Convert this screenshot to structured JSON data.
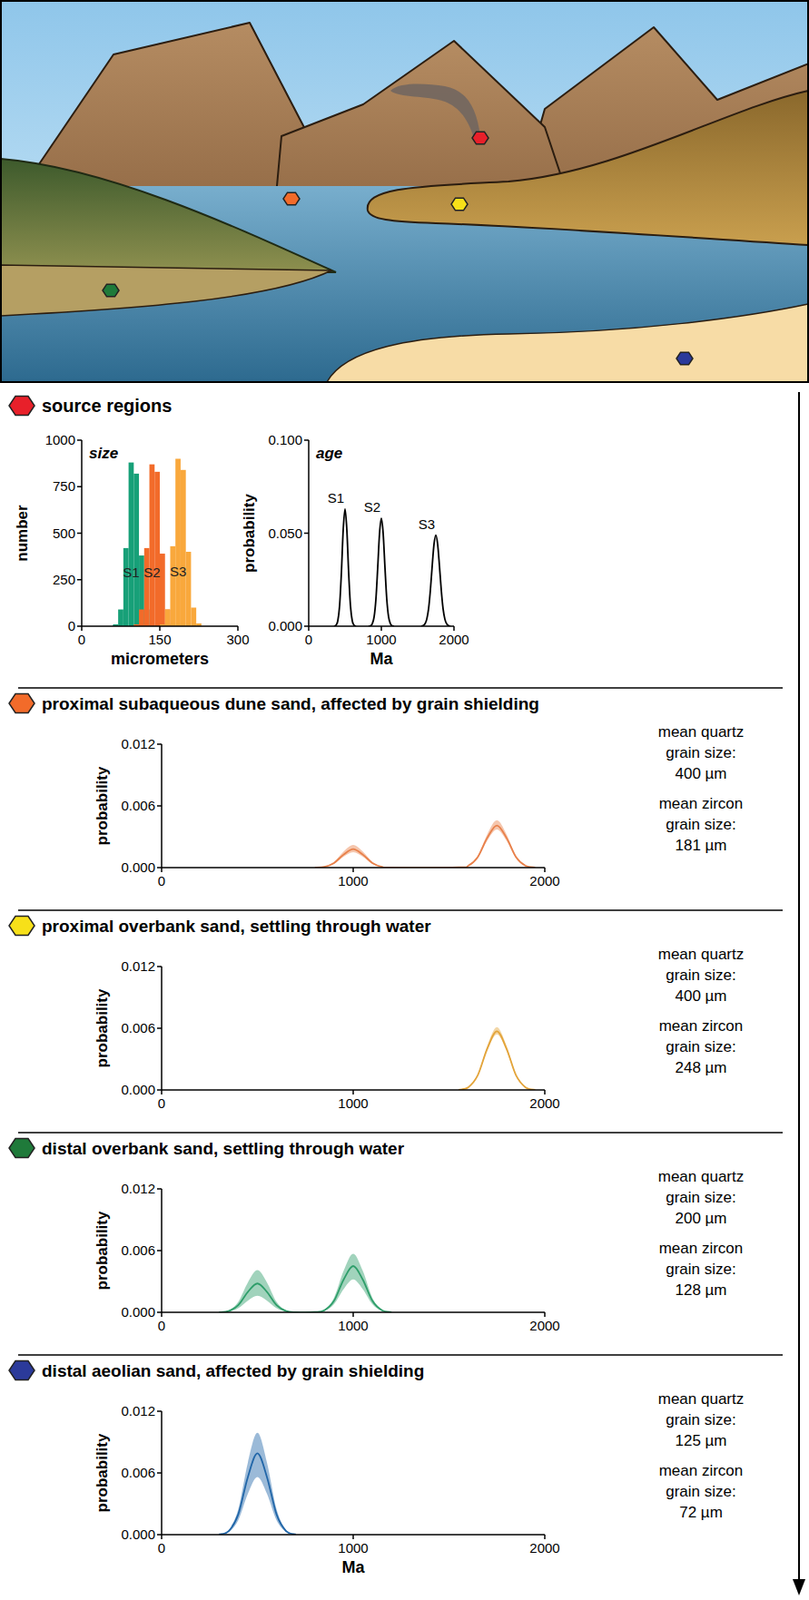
{
  "header": {
    "text": "source regions",
    "color": "#e8202a"
  },
  "chart_data": [
    {
      "type": "histogram",
      "title": "size",
      "xlabel": "micrometers",
      "ylabel": "number",
      "xlim": [
        0,
        300
      ],
      "xticks": [
        0,
        150,
        300
      ],
      "ylim": [
        0,
        1000
      ],
      "yticks": [
        0,
        250,
        500,
        750,
        1000
      ],
      "bins": [
        50,
        60,
        70,
        80,
        90,
        100,
        110,
        120,
        130,
        140,
        150,
        160,
        170,
        180,
        190,
        200,
        210,
        220,
        230,
        240,
        250
      ],
      "series": [
        {
          "name": "S1",
          "color": "#17a078",
          "values": [
            0,
            10,
            90,
            420,
            880,
            820,
            380,
            90,
            10,
            0,
            0,
            0,
            0,
            0,
            0,
            0,
            0,
            0,
            0,
            0
          ]
        },
        {
          "name": "S2",
          "color": "#f26b2a",
          "values": [
            0,
            0,
            0,
            0,
            0,
            10,
            90,
            420,
            870,
            830,
            390,
            90,
            10,
            0,
            0,
            0,
            0,
            0,
            0,
            0
          ]
        },
        {
          "name": "S3",
          "color": "#f9a83c",
          "values": [
            0,
            0,
            0,
            0,
            0,
            0,
            0,
            0,
            0,
            0,
            10,
            90,
            430,
            900,
            840,
            400,
            100,
            15,
            0,
            0
          ]
        }
      ]
    },
    {
      "type": "line",
      "title": "age",
      "xlabel": "Ma",
      "ylabel": "probability",
      "xlim": [
        0,
        2000
      ],
      "xticks": [
        0,
        1000,
        2000
      ],
      "ylim": [
        0,
        0.1
      ],
      "yticks": [
        {
          "value": 0,
          "label": "0.000"
        },
        {
          "value": 0.05,
          "label": "0.050"
        },
        {
          "value": 0.1,
          "label": "0.100"
        }
      ],
      "series": [
        {
          "name": "S1",
          "color": "#000000",
          "x": [
            350,
            375,
            400,
            425,
            450,
            475,
            500,
            525,
            550,
            575,
            600,
            625,
            650
          ],
          "values": [
            0,
            0.0005,
            0.0028,
            0.0109,
            0.0288,
            0.0519,
            0.063,
            0.0519,
            0.0288,
            0.0109,
            0.0028,
            0.0005,
            0
          ]
        },
        {
          "name": "S2",
          "color": "#000000",
          "x": [
            825,
            850,
            875,
            900,
            925,
            950,
            975,
            1000,
            1025,
            1050,
            1075,
            1100,
            1125,
            1150,
            1175
          ],
          "values": [
            0,
            0.0002,
            0.0013,
            0.0049,
            0.0144,
            0.0314,
            0.0499,
            0.058,
            0.0499,
            0.0314,
            0.0144,
            0.0049,
            0.0013,
            0.0002,
            0
          ]
        },
        {
          "name": "S3",
          "color": "#000000",
          "x": [
            1550,
            1575,
            1600,
            1625,
            1650,
            1675,
            1700,
            1725,
            1750,
            1775,
            1800,
            1825,
            1850,
            1875,
            1900,
            1925,
            1950
          ],
          "values": [
            0,
            0.0003,
            0.0012,
            0.0037,
            0.0093,
            0.0194,
            0.0324,
            0.0441,
            0.049,
            0.0441,
            0.0324,
            0.0194,
            0.0093,
            0.0037,
            0.0012,
            0.0003,
            0
          ]
        }
      ]
    },
    {
      "type": "line",
      "title": "proximal subaqueous dune sand, affected by grain shielding",
      "color": "#f26b2a",
      "ylabel": "probability",
      "xlim": [
        0,
        2000
      ],
      "xticks": [
        0,
        1000,
        2000
      ],
      "ylim": [
        0,
        0.012
      ],
      "yticks": [
        {
          "value": 0,
          "label": "0.000"
        },
        {
          "value": 0.006,
          "label": "0.006"
        },
        {
          "value": 0.012,
          "label": "0.012"
        }
      ],
      "annotations": [
        "mean quartz grain size:",
        "400 µm",
        "mean zircon grain size:",
        "181 µm"
      ],
      "series": [
        {
          "color": "#e8804a",
          "x": [
            800,
            850,
            900,
            950,
            1000,
            1050,
            1100,
            1150,
            1200,
            1550,
            1600,
            1650,
            1700,
            1750,
            1800,
            1850,
            1900,
            1950
          ],
          "values": [
            1e-05,
            8e-05,
            0.00045,
            0.00127,
            0.0018,
            0.00127,
            0.00045,
            8e-05,
            1e-05,
            2e-05,
            0.00018,
            0.00102,
            0.0029,
            0.0041,
            0.0029,
            0.00102,
            0.00018,
            2e-05
          ],
          "lower": [
            1e-05,
            7e-05,
            0.00037,
            0.00106,
            0.0015,
            0.00106,
            0.00037,
            7e-05,
            1e-05,
            1e-05,
            0.00016,
            0.00092,
            0.00262,
            0.0037,
            0.00262,
            0.00092,
            0.00016,
            1e-05
          ],
          "upper": [
            1e-05,
            0.0001,
            0.00055,
            0.00156,
            0.0022,
            0.00156,
            0.00055,
            0.0001,
            1e-05,
            2e-05,
            0.0002,
            0.00115,
            0.00325,
            0.0046,
            0.00325,
            0.00115,
            0.0002,
            2e-05
          ]
        }
      ]
    },
    {
      "type": "line",
      "title": "proximal overbank sand, settling through water",
      "color": "#f7e019",
      "ylabel": "probability",
      "xlim": [
        0,
        2000
      ],
      "xticks": [
        0,
        1000,
        2000
      ],
      "ylim": [
        0,
        0.012
      ],
      "yticks": [
        {
          "value": 0,
          "label": "0.000"
        },
        {
          "value": 0.006,
          "label": "0.006"
        },
        {
          "value": 0.012,
          "label": "0.012"
        }
      ],
      "annotations": [
        "mean quartz grain size:",
        "400 µm",
        "mean zircon grain size:",
        "248 µm"
      ],
      "series": [
        {
          "color": "#e3a43a",
          "x": [
            1550,
            1600,
            1650,
            1700,
            1750,
            1800,
            1850,
            1900,
            1950
          ],
          "values": [
            2e-05,
            0.00025,
            0.00142,
            0.00403,
            0.0057,
            0.00403,
            0.00142,
            0.00025,
            2e-05
          ],
          "lower": [
            2e-05,
            0.00024,
            0.00134,
            0.00382,
            0.0054,
            0.00382,
            0.00134,
            0.00024,
            2e-05
          ],
          "upper": [
            2e-05,
            0.00027,
            0.00152,
            0.00431,
            0.0061,
            0.00431,
            0.00152,
            0.00027,
            2e-05
          ]
        }
      ]
    },
    {
      "type": "line",
      "title": "distal overbank sand, settling through water",
      "color": "#1f7a3a",
      "ylabel": "probability",
      "xlim": [
        0,
        2000
      ],
      "xticks": [
        0,
        1000,
        2000
      ],
      "ylim": [
        0,
        0.012
      ],
      "yticks": [
        {
          "value": 0,
          "label": "0.000"
        },
        {
          "value": 0.006,
          "label": "0.006"
        },
        {
          "value": 0.012,
          "label": "0.012"
        }
      ],
      "annotations": [
        "mean quartz grain size:",
        "200 µm",
        "mean zircon grain size:",
        "128 µm"
      ],
      "series": [
        {
          "color": "#2e9e6a",
          "x": [
            300,
            350,
            400,
            450,
            500,
            550,
            600,
            650,
            700,
            800,
            850,
            900,
            950,
            1000,
            1050,
            1100,
            1150,
            1200
          ],
          "values": [
            1e-05,
            0.00012,
            0.0007,
            0.00198,
            0.0028,
            0.00198,
            0.0007,
            0.00012,
            1e-05,
            2e-05,
            0.0002,
            0.00112,
            0.00318,
            0.0045,
            0.00318,
            0.00112,
            0.0002,
            2e-05
          ],
          "lower": [
            1e-05,
            7e-05,
            0.0004,
            0.00113,
            0.0016,
            0.00113,
            0.0004,
            7e-05,
            1e-05,
            1e-05,
            0.00014,
            0.0008,
            0.00226,
            0.0032,
            0.00226,
            0.0008,
            0.00014,
            1e-05
          ],
          "upper": [
            2e-05,
            0.00018,
            0.00102,
            0.0029,
            0.0041,
            0.0029,
            0.00102,
            0.00018,
            2e-05,
            2e-05,
            0.00025,
            0.00142,
            0.00403,
            0.0057,
            0.00403,
            0.00142,
            0.00025,
            2e-05
          ]
        }
      ]
    },
    {
      "type": "line",
      "title": "distal aeolian sand, affected by grain shielding",
      "color": "#2b3a9a",
      "ylabel": "probability",
      "xlabel": "Ma",
      "xlim": [
        0,
        2000
      ],
      "xticks": [
        0,
        1000,
        2000
      ],
      "ylim": [
        0,
        0.012
      ],
      "yticks": [
        {
          "value": 0,
          "label": "0.000"
        },
        {
          "value": 0.006,
          "label": "0.006"
        },
        {
          "value": 0.012,
          "label": "0.012"
        }
      ],
      "annotations": [
        "mean quartz grain size:",
        "125 µm",
        "mean zircon grain size:",
        "72 µm"
      ],
      "series": [
        {
          "color": "#2166a8",
          "x": [
            300,
            350,
            400,
            450,
            500,
            550,
            600,
            650,
            700
          ],
          "values": [
            3e-05,
            0.00035,
            0.00197,
            0.00559,
            0.0079,
            0.00559,
            0.00197,
            0.00035,
            3e-05
          ],
          "lower": [
            2e-05,
            0.00025,
            0.00139,
            0.00396,
            0.0056,
            0.00396,
            0.00139,
            0.00025,
            2e-05
          ],
          "upper": [
            4e-05,
            0.00044,
            0.00247,
            0.007,
            0.0099,
            0.007,
            0.00247,
            0.00044,
            4e-05
          ]
        }
      ]
    }
  ]
}
